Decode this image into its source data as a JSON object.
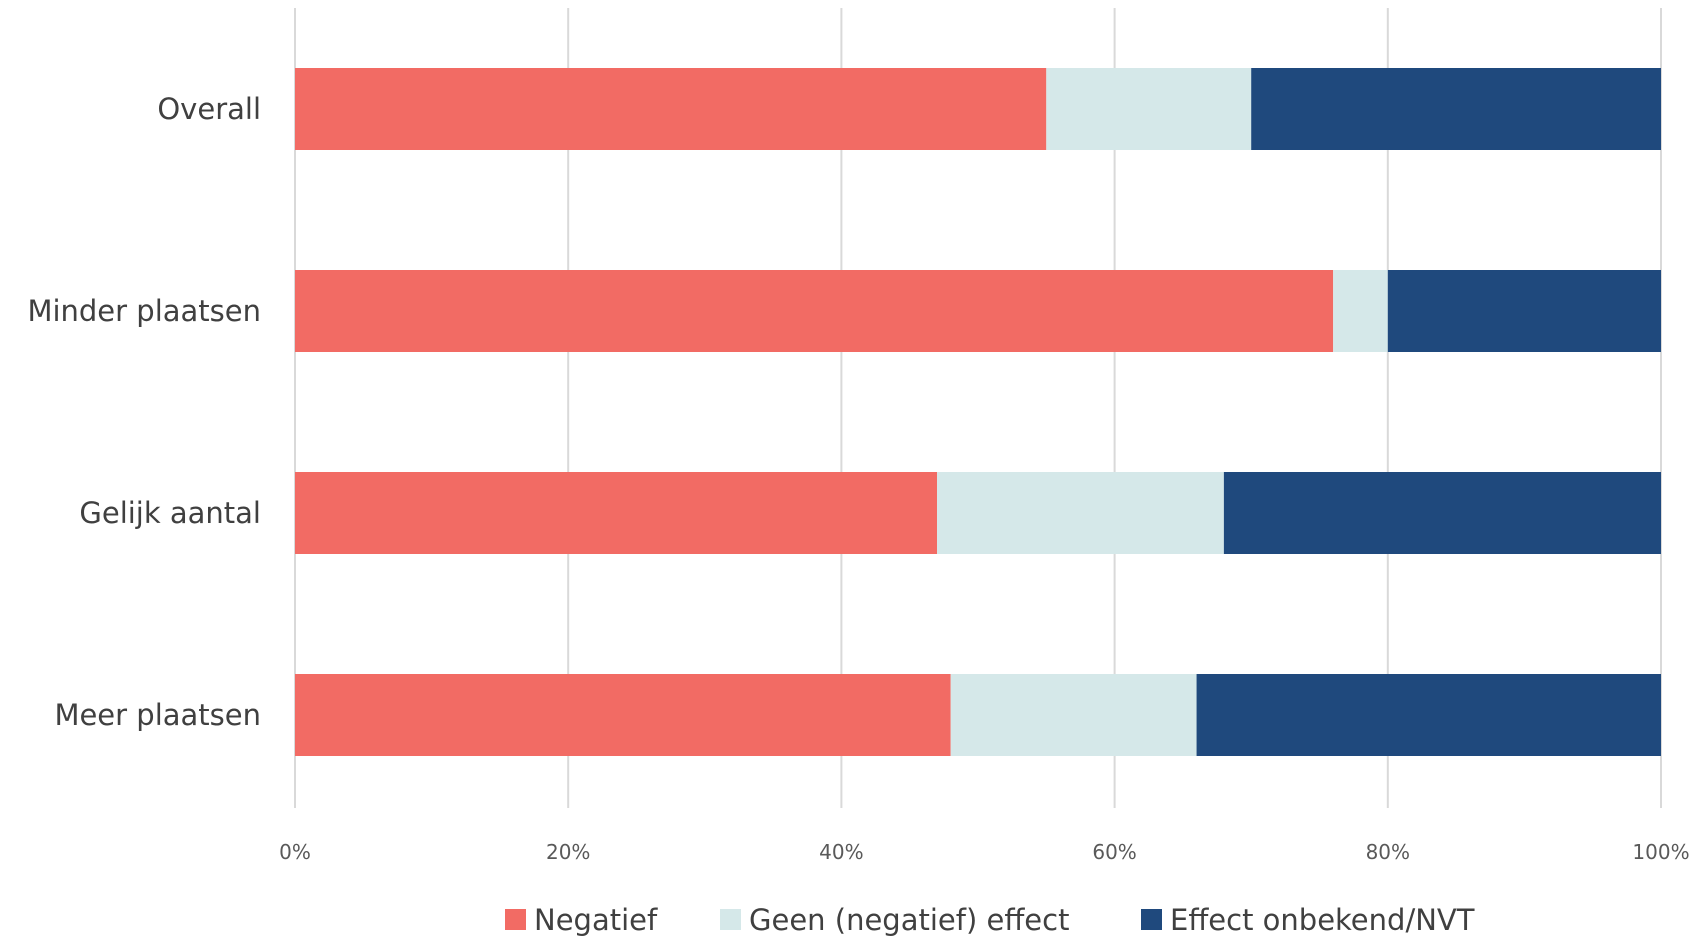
{
  "chart_data": {
    "type": "bar",
    "orientation": "horizontal",
    "stacked": true,
    "percent": true,
    "categories": [
      "Overall",
      "Minder plaatsen",
      "Gelijk aantal",
      "Meer plaatsen"
    ],
    "series": [
      {
        "name": "Negatief",
        "color": "#f26b64",
        "values": [
          55,
          76,
          47,
          48
        ]
      },
      {
        "name": "Geen (negatief) effect",
        "color": "#d5e8e9",
        "values": [
          15,
          4,
          21,
          18
        ]
      },
      {
        "name": "Effect onbekend/NVT",
        "color": "#1f497d",
        "values": [
          30,
          20,
          32,
          34
        ]
      }
    ],
    "xlim": [
      0,
      100
    ],
    "xticks": [
      "0%",
      "20%",
      "40%",
      "60%",
      "80%",
      "100%"
    ],
    "grid": true,
    "legend_position": "bottom"
  }
}
